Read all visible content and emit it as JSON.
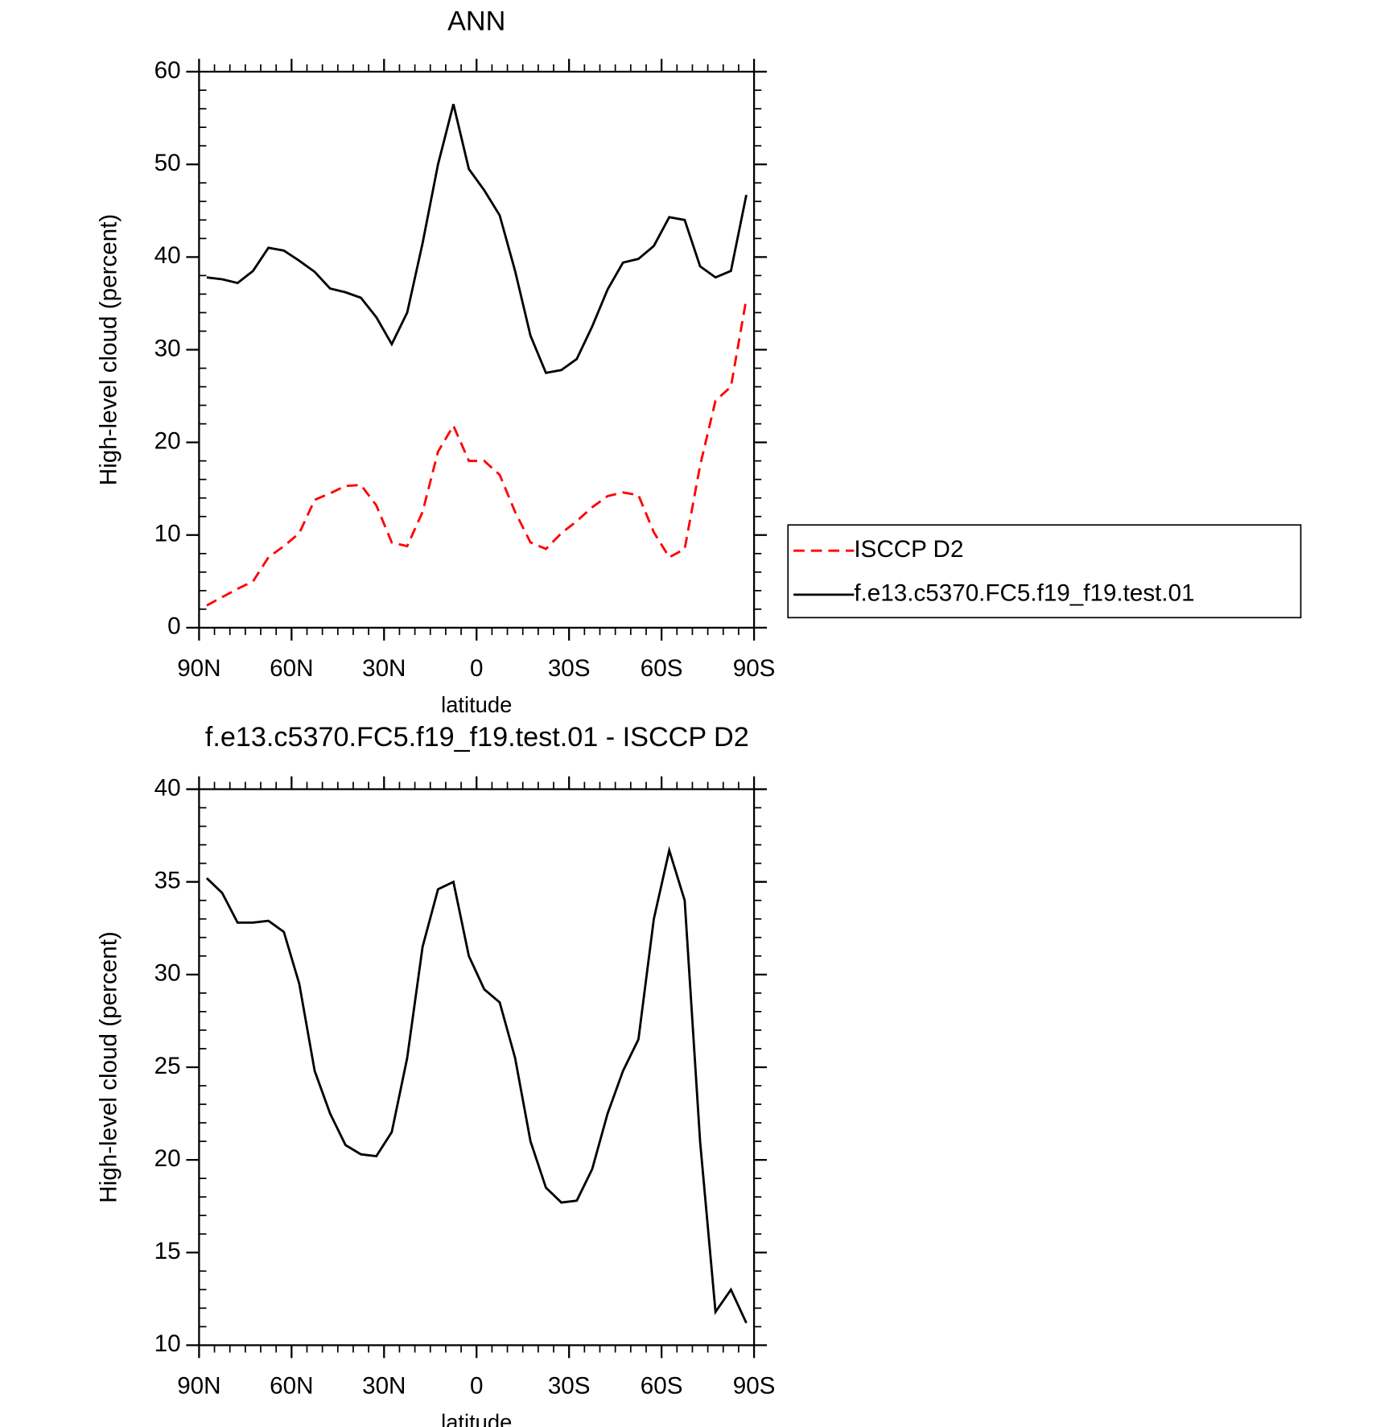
{
  "chart_data": [
    {
      "type": "line",
      "title": "ANN",
      "xlabel": "latitude",
      "ylabel": "High-level cloud (percent)",
      "x": [
        87.5,
        82.5,
        77.5,
        72.5,
        67.5,
        62.5,
        57.5,
        52.5,
        47.5,
        42.5,
        37.5,
        32.5,
        27.5,
        22.5,
        17.5,
        12.5,
        7.5,
        2.5,
        -2.5,
        -7.5,
        -12.5,
        -17.5,
        -22.5,
        -27.5,
        -32.5,
        -37.5,
        -42.5,
        -47.5,
        -52.5,
        -57.5,
        -62.5,
        -67.5,
        -72.5,
        -77.5,
        -82.5,
        -87.5
      ],
      "series": [
        {
          "name": "ISCCP D2",
          "color": "#ff0000",
          "dash": true,
          "values": [
            2.4,
            3.3,
            4.2,
            5.0,
            7.6,
            8.8,
            10.2,
            13.8,
            14.5,
            15.3,
            15.4,
            13.2,
            9.2,
            8.8,
            12.5,
            19.0,
            21.8,
            18.0,
            18.0,
            16.5,
            12.5,
            9.2,
            8.5,
            10.2,
            11.5,
            13.0,
            14.2,
            14.6,
            14.3,
            10.3,
            7.6,
            8.5,
            17.5,
            24.5,
            26.0,
            35.5
          ]
        },
        {
          "name": "f.e13.c5370.FC5.f19_f19.test.01",
          "color": "#000000",
          "dash": false,
          "values": [
            37.8,
            37.6,
            37.2,
            38.5,
            41.0,
            40.7,
            39.6,
            38.4,
            36.6,
            36.2,
            35.6,
            33.5,
            30.6,
            34.0,
            41.5,
            50.0,
            56.5,
            49.5,
            47.2,
            44.5,
            38.5,
            31.5,
            27.5,
            27.8,
            29.0,
            32.5,
            36.5,
            39.4,
            39.8,
            41.2,
            44.3,
            44.0,
            39.0,
            37.8,
            38.5,
            46.7
          ]
        }
      ],
      "xlim": [
        90,
        -90
      ],
      "xticks": [
        {
          "value": 90,
          "label": "90N"
        },
        {
          "value": 60,
          "label": "60N"
        },
        {
          "value": 30,
          "label": "30N"
        },
        0,
        {
          "value": -30,
          "label": "30S"
        },
        {
          "value": -60,
          "label": "60S"
        },
        {
          "value": -90,
          "label": "90S"
        }
      ],
      "ylim": [
        0,
        60
      ],
      "yticks": [
        0,
        10,
        20,
        30,
        40,
        50,
        60
      ],
      "legend": "right"
    },
    {
      "type": "line",
      "title": "f.e13.c5370.FC5.f19_f19.test.01 - ISCCP D2",
      "xlabel": "latitude",
      "ylabel": "High-level cloud (percent)",
      "x": [
        87.5,
        82.5,
        77.5,
        72.5,
        67.5,
        62.5,
        57.5,
        52.5,
        47.5,
        42.5,
        37.5,
        32.5,
        27.5,
        22.5,
        17.5,
        12.5,
        7.5,
        2.5,
        -2.5,
        -7.5,
        -12.5,
        -17.5,
        -22.5,
        -27.5,
        -32.5,
        -37.5,
        -42.5,
        -47.5,
        -52.5,
        -57.5,
        -62.5,
        -67.5,
        -72.5,
        -77.5,
        -82.5,
        -87.5
      ],
      "color": "#000000",
      "values": [
        35.2,
        34.4,
        32.8,
        32.8,
        32.9,
        32.3,
        29.5,
        24.8,
        22.5,
        20.8,
        20.3,
        20.2,
        21.5,
        25.5,
        31.5,
        34.6,
        35.0,
        31.0,
        29.2,
        28.5,
        25.5,
        21.0,
        18.5,
        17.7,
        17.8,
        19.5,
        22.5,
        24.8,
        26.5,
        33.0,
        36.7,
        34.0,
        21.0,
        11.8,
        13.0,
        11.2
      ],
      "xlim": [
        90,
        -90
      ],
      "xticks": [
        {
          "value": 90,
          "label": "90N"
        },
        {
          "value": 60,
          "label": "60N"
        },
        {
          "value": 30,
          "label": "30N"
        },
        0,
        {
          "value": -30,
          "label": "30S"
        },
        {
          "value": -60,
          "label": "60S"
        },
        {
          "value": -90,
          "label": "90S"
        }
      ],
      "ylim": [
        10,
        40
      ],
      "yticks": [
        10,
        15,
        20,
        25,
        30,
        35,
        40
      ]
    }
  ]
}
